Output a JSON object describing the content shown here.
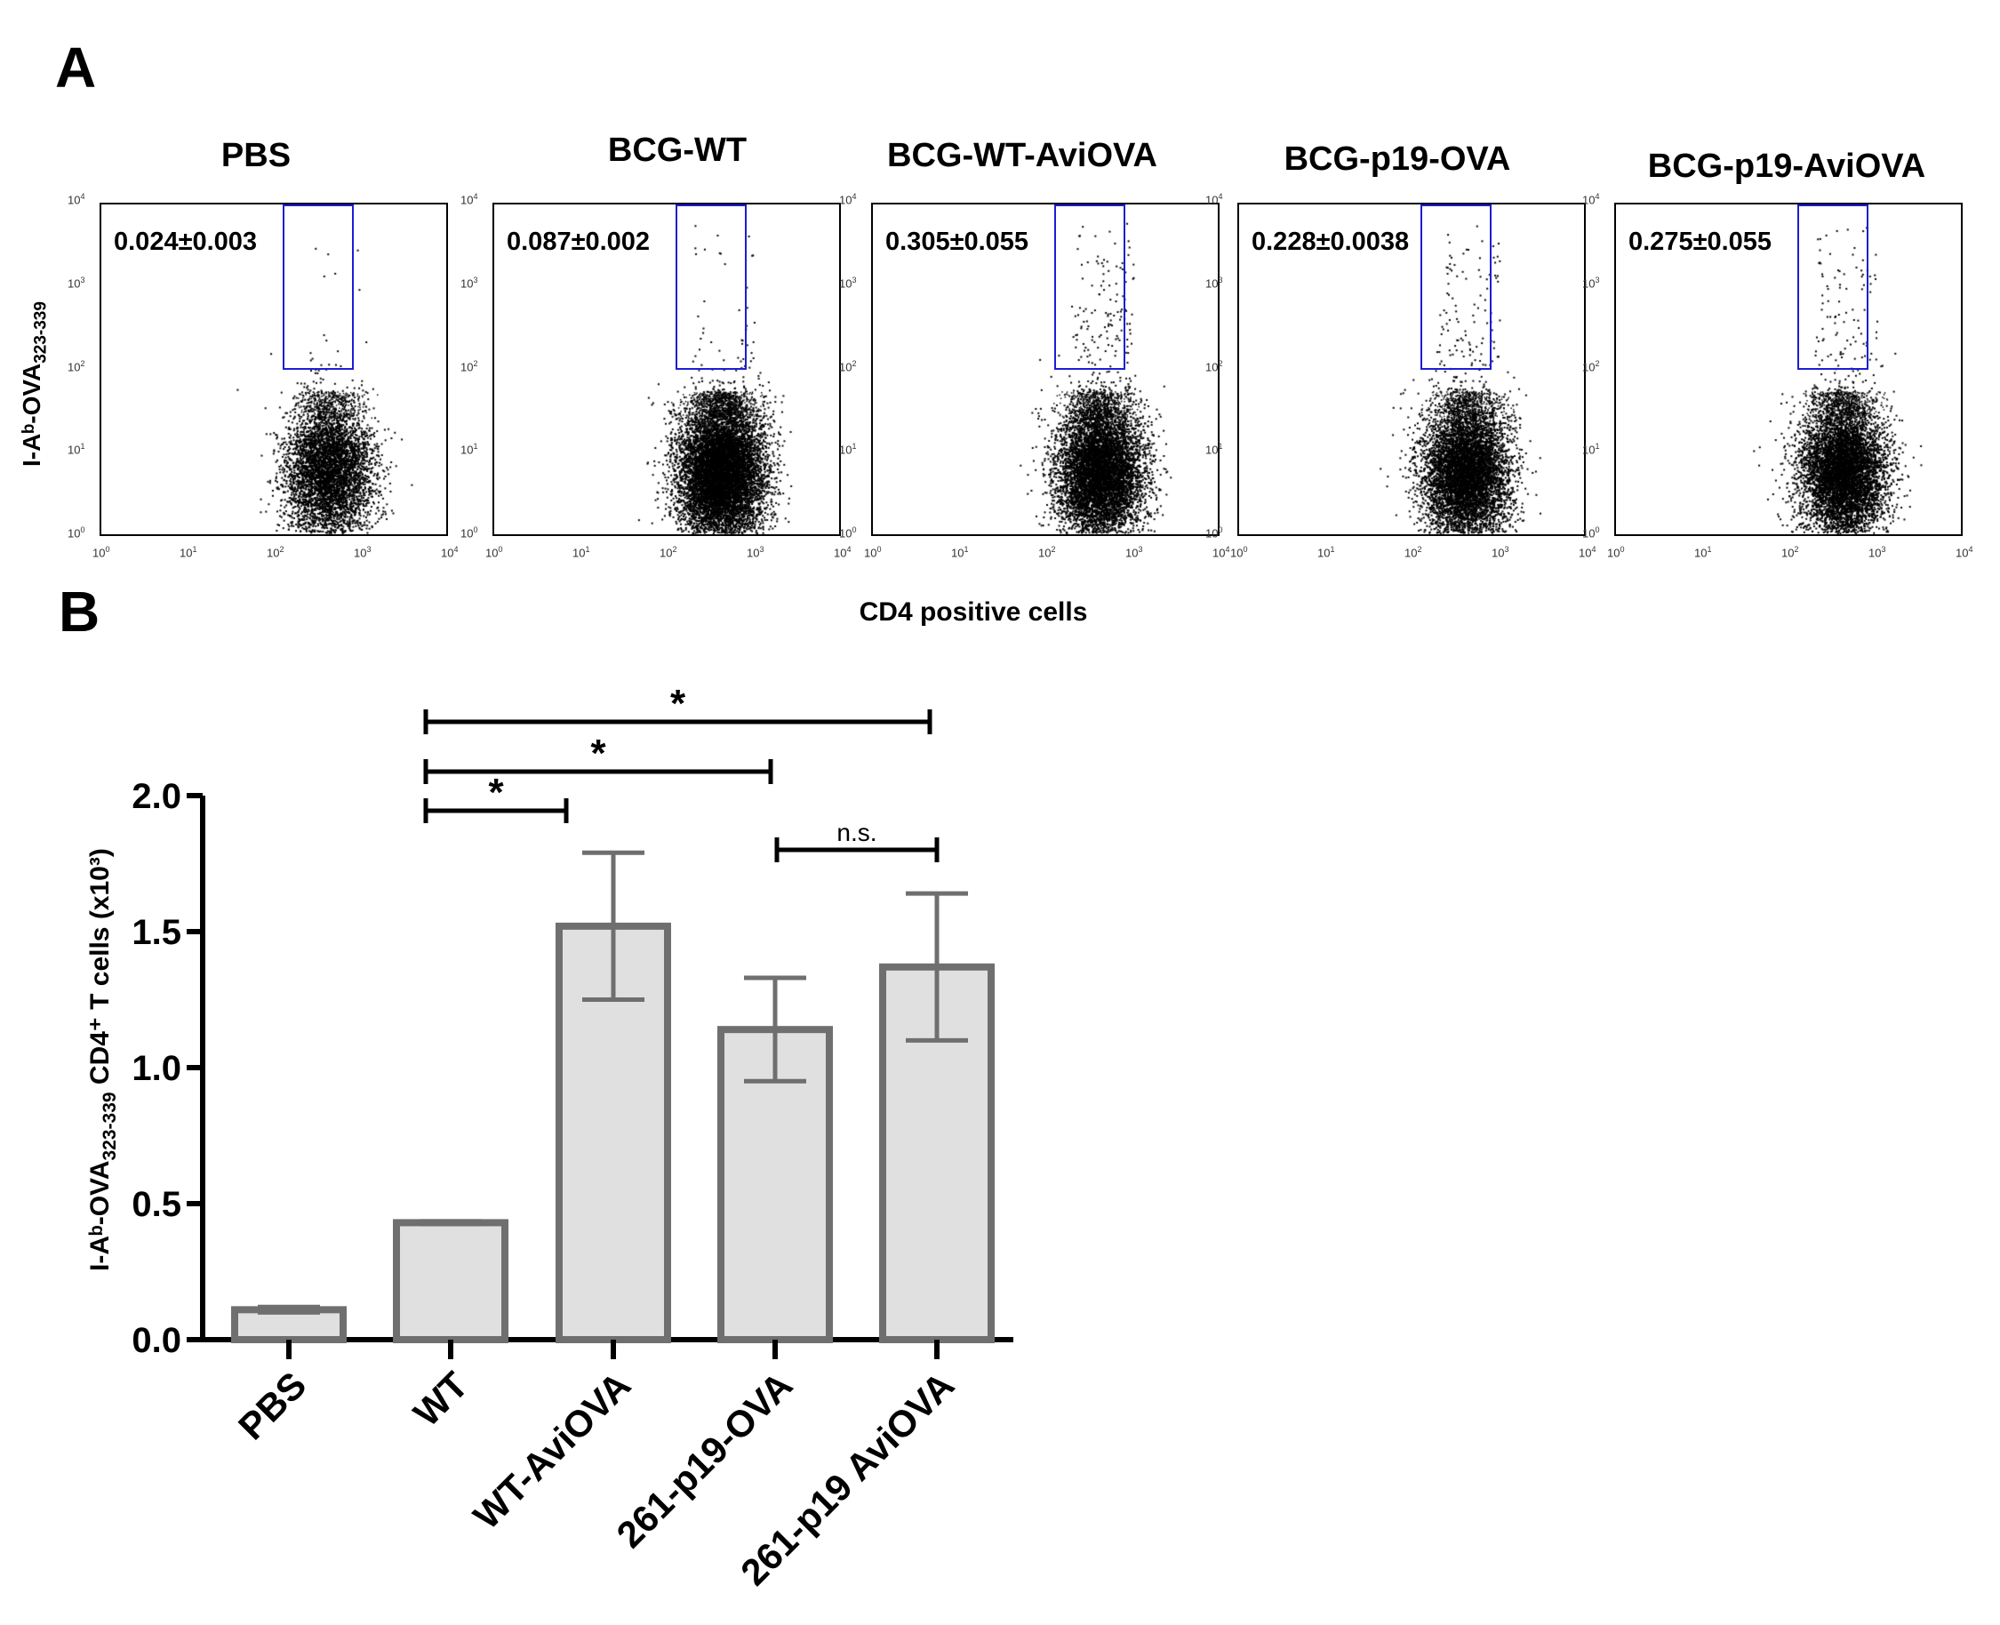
{
  "panel_a": {
    "letter": "A",
    "y_axis_label": "I-Aᵇ-OVA",
    "y_axis_label_sub": "323-339",
    "x_axis_label": "CD4 positive cells",
    "axis_tick_base": "10",
    "axis_tick_exponents": [
      "0",
      "1",
      "2",
      "3",
      "4"
    ],
    "gate_color": "#1d1dd6",
    "plots": [
      {
        "title": "PBS",
        "stat": "0.024±0.003",
        "density": 0.55,
        "gate_events": 8
      },
      {
        "title": "BCG-WT",
        "stat": "0.087±0.002",
        "density": 1.0,
        "gate_events": 30
      },
      {
        "title": "BCG-WT-AviOVA",
        "stat": "0.305±0.055",
        "density": 0.8,
        "gate_events": 120
      },
      {
        "title": "BCG-p19-OVA",
        "stat": "0.228±0.0038",
        "density": 0.75,
        "gate_events": 100
      },
      {
        "title": "BCG-p19-AviOVA",
        "stat": "0.275±0.055",
        "density": 0.75,
        "gate_events": 90
      }
    ]
  },
  "panel_b": {
    "letter": "B",
    "bar_fill": "#e0e0e0",
    "bar_stroke": "#6f6f6f",
    "chart_data": {
      "type": "bar",
      "categories": [
        "PBS",
        "WT",
        "WT-AviOVA",
        "261-p19-OVA",
        "261-p19 AviOVA"
      ],
      "values": [
        0.11,
        0.43,
        1.52,
        1.14,
        1.37
      ],
      "errors": [
        0.01,
        0.005,
        0.27,
        0.19,
        0.27
      ],
      "ylim": [
        0,
        2.0
      ],
      "yticks": [
        "0.0",
        "0.5",
        "1.0",
        "1.5",
        "2.0"
      ],
      "ylabel_main": "I-Aᵇ-OVA",
      "ylabel_sub": "323-339",
      "ylabel_tail": " CD4⁺ T cells (x10³)",
      "xlabel": "",
      "title": "",
      "significance": [
        {
          "from": 1,
          "to": 4,
          "label": "*"
        },
        {
          "from": 1,
          "to": 3,
          "label": "*"
        },
        {
          "from": 1,
          "to": 2,
          "label": "*"
        },
        {
          "from": 3,
          "to": 4,
          "label": "n.s."
        }
      ]
    }
  }
}
